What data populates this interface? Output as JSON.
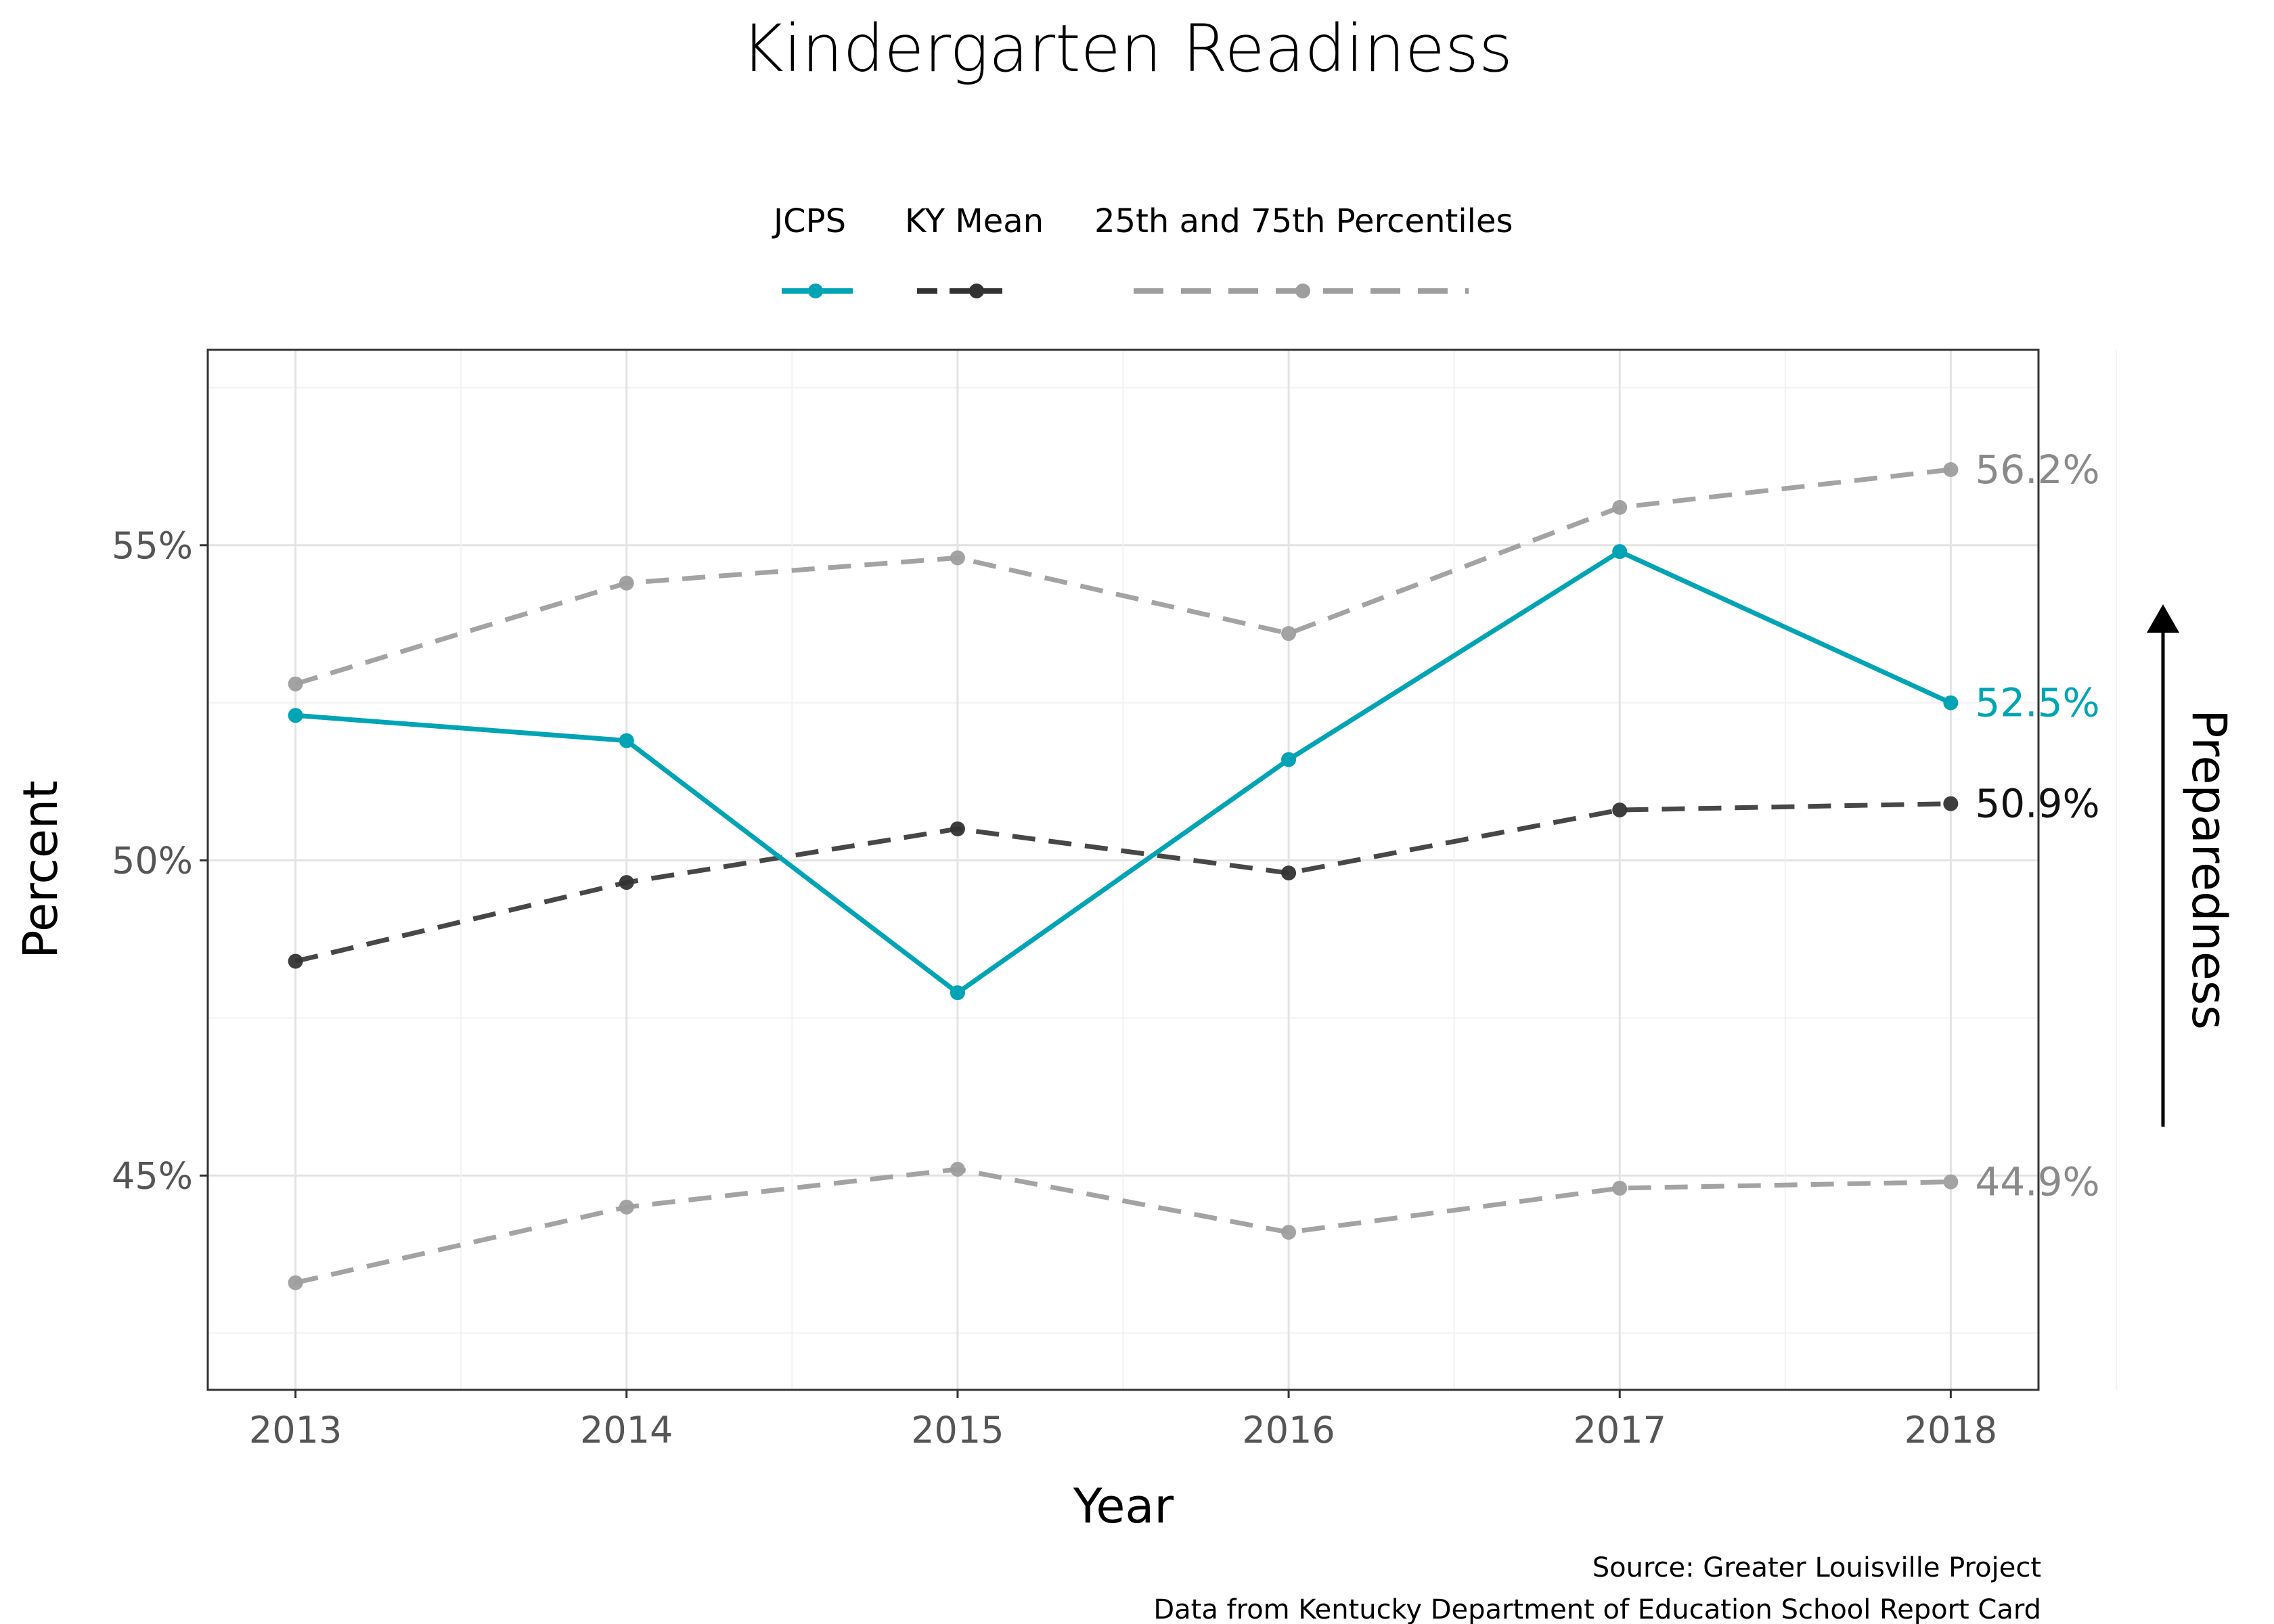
{
  "chart_data": {
    "type": "line",
    "title": "Kindergarten Readiness",
    "xlabel": "Year",
    "ylabel": "Percent",
    "x": [
      2013,
      2014,
      2015,
      2016,
      2017,
      2018
    ],
    "ylim": [
      41.6,
      58.1
    ],
    "y_ticks": [
      "45%",
      "50%",
      "55%"
    ],
    "grid": true,
    "legend_position": "top",
    "legend": [
      "JCPS",
      "KY Mean",
      "25th and 75th Percentiles"
    ],
    "series": [
      {
        "name": "JCPS",
        "style": "solid",
        "color": "#00A4B4",
        "values": [
          52.3,
          51.9,
          47.9,
          51.6,
          54.9,
          52.5
        ],
        "end_label": "52.5%"
      },
      {
        "name": "KY Mean",
        "style": "dashed",
        "color": "#333333",
        "values": [
          48.4,
          49.65,
          50.5,
          49.8,
          50.8,
          50.9
        ],
        "end_label": "50.9%"
      },
      {
        "name": "25th and 75th Percentiles",
        "style": "dashed",
        "color": "#9E9E9E",
        "values": [
          52.8,
          54.4,
          54.8,
          53.6,
          55.6,
          56.2
        ],
        "end_label": "56.2%"
      },
      {
        "name": "25th and 75th Percentiles",
        "style": "dashed",
        "color": "#9E9E9E",
        "values": [
          43.3,
          44.5,
          45.1,
          44.1,
          44.8,
          44.9
        ],
        "end_label": "44.9%"
      }
    ],
    "side_label": "Preparedness",
    "caption": [
      "Source: Greater Louisville Project",
      "Data from Kentucky Department of Education School Report Card"
    ]
  }
}
